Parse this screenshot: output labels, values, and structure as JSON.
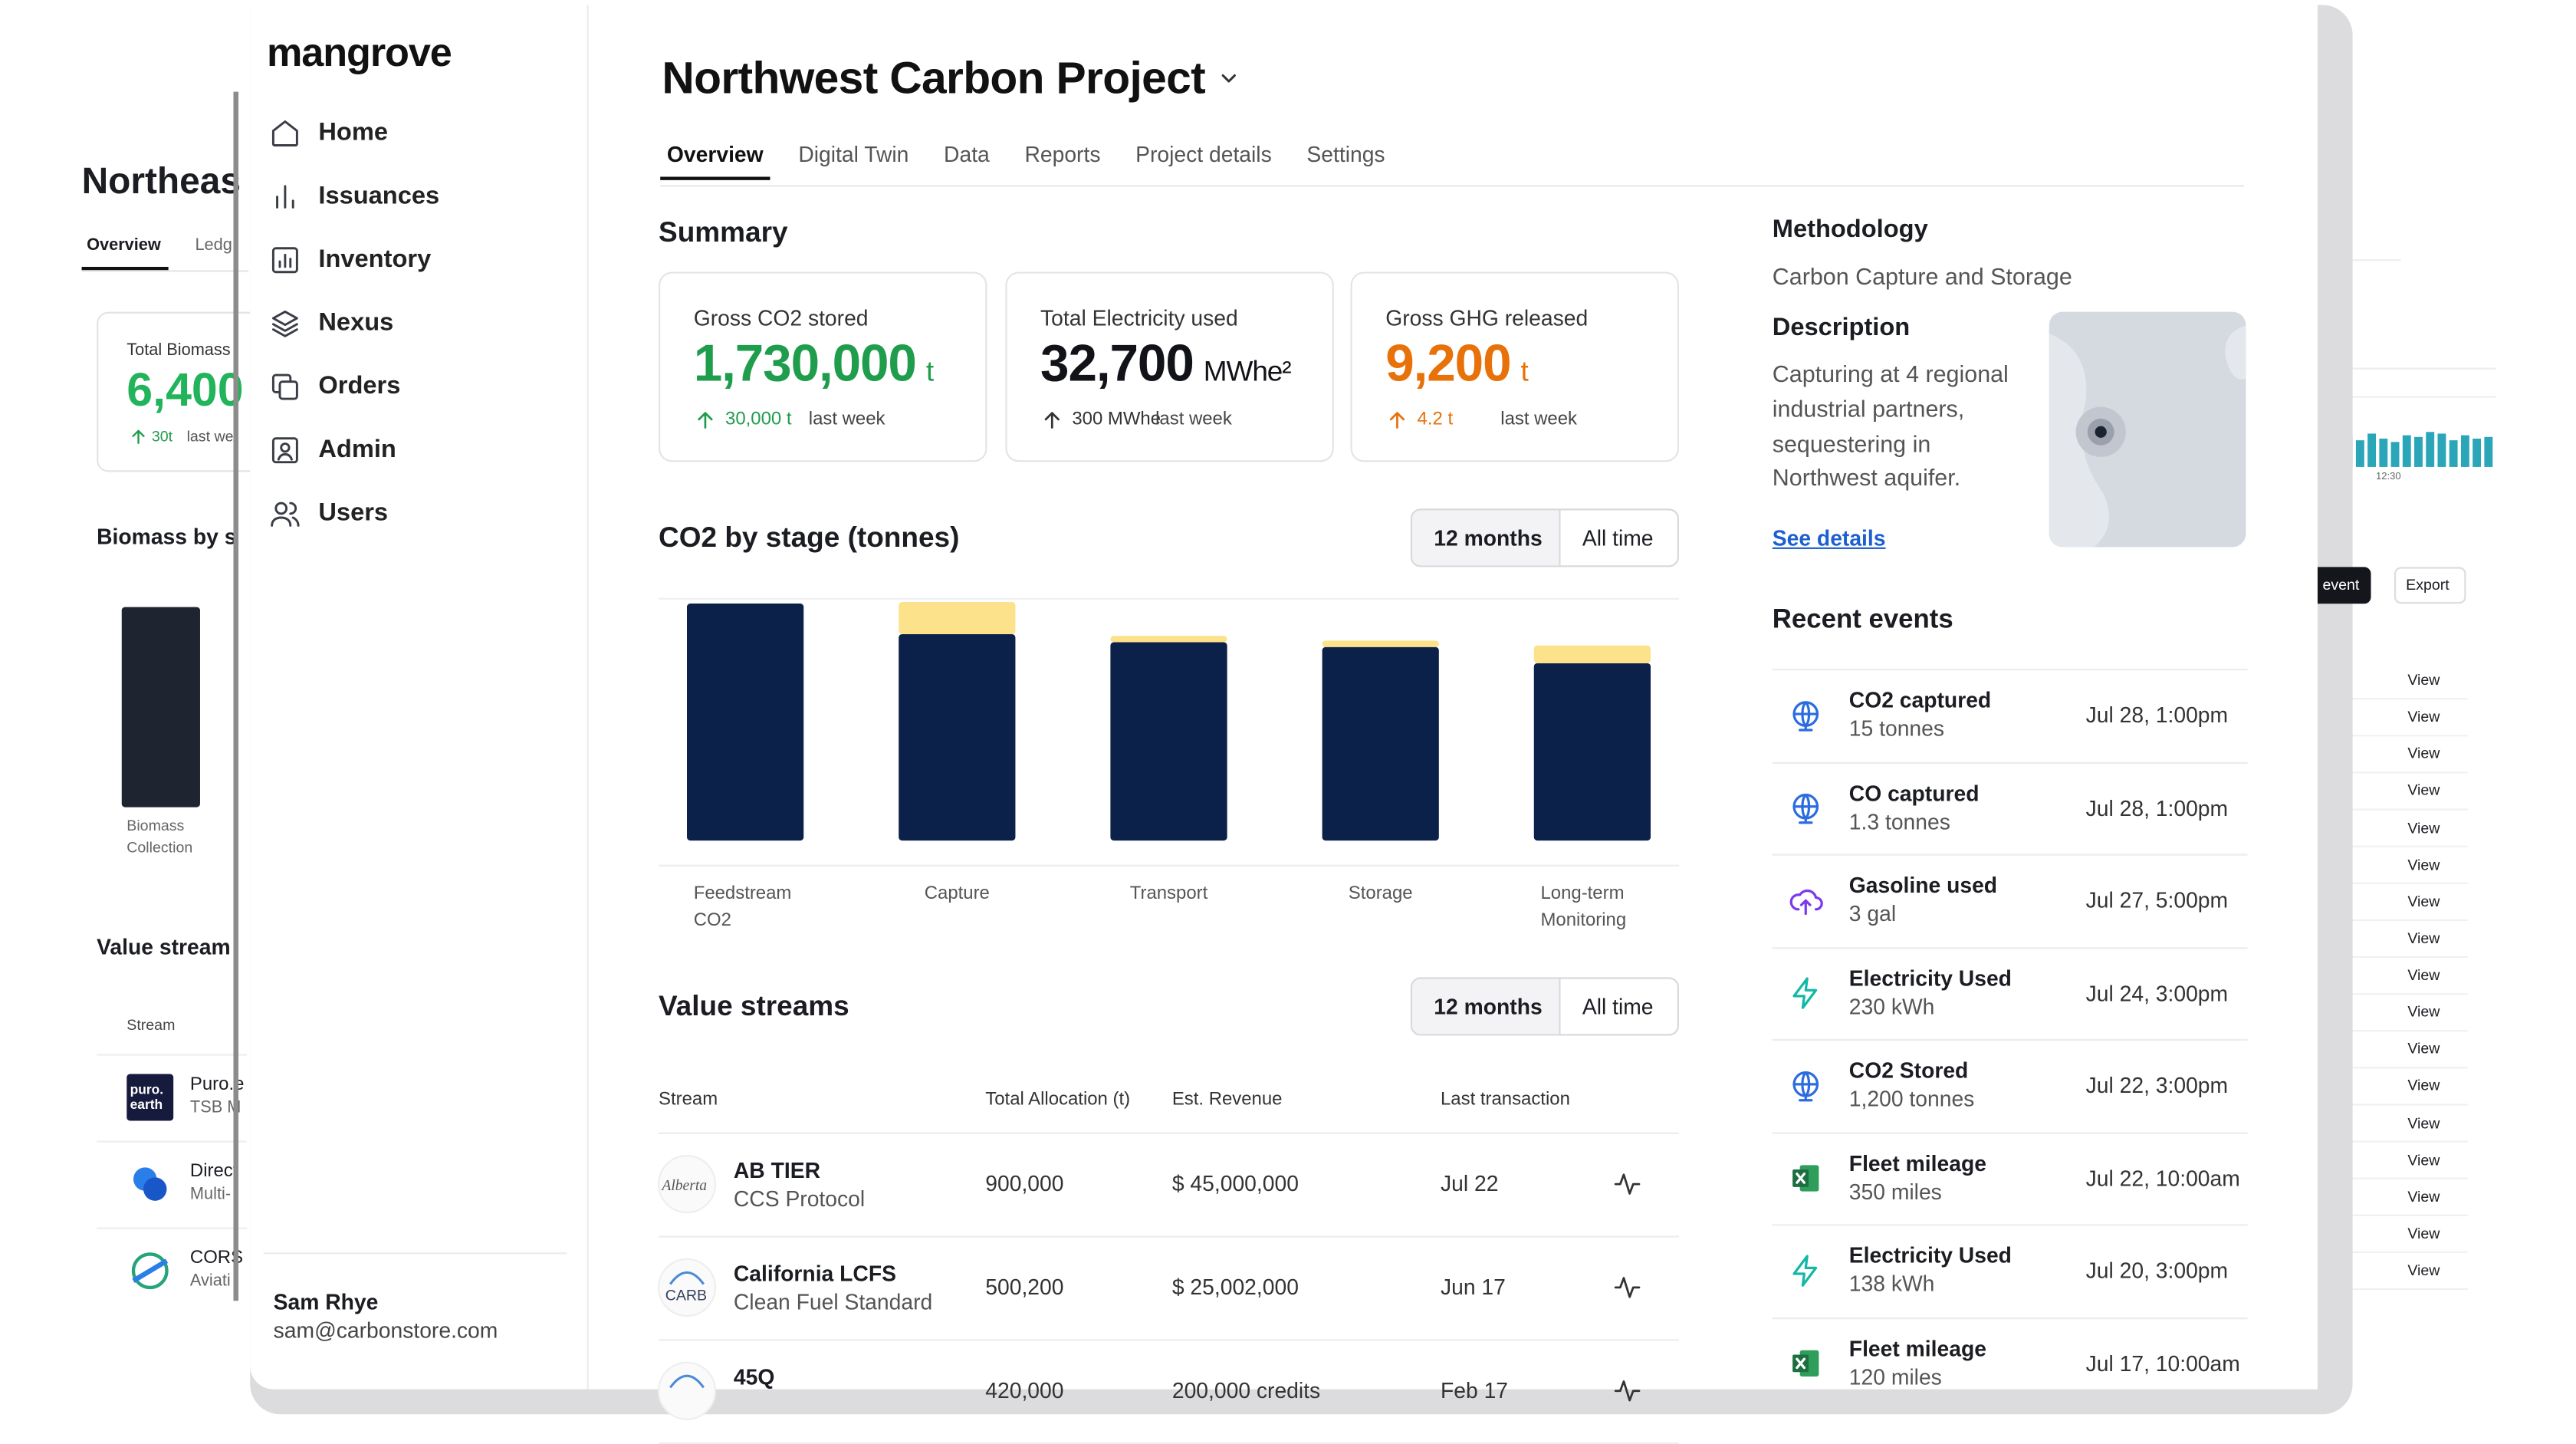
{
  "background_left": {
    "title": "Northeas",
    "tabs": [
      "Overview",
      "Ledg"
    ],
    "card_label": "Total Biomass",
    "card_value": "6,400",
    "card_delta": "30t",
    "card_note": "last we",
    "chart_title": "Biomass by s",
    "chart_label": "Biomass Collection",
    "section_title": "Value stream",
    "column": "Stream",
    "logo_text": [
      "puro.",
      "earth"
    ],
    "rows": [
      {
        "name": "Puro.e",
        "detail": "TSB M"
      },
      {
        "name": "Direct",
        "detail": "Multi-"
      },
      {
        "name": "CORS",
        "detail": "Aviati"
      }
    ]
  },
  "background_right": {
    "buttons": [
      "event",
      "Export"
    ],
    "time_label": "12:30",
    "links": [
      "View",
      "View",
      "View",
      "View",
      "View",
      "View",
      "View",
      "View",
      "View",
      "View",
      "View",
      "View",
      "View",
      "View",
      "View",
      "View",
      "View"
    ]
  },
  "sidebar": {
    "brand": "mangrove",
    "nav": [
      "Home",
      "Issuances",
      "Inventory",
      "Nexus",
      "Orders",
      "Admin",
      "Users"
    ],
    "user": {
      "name": "Sam Rhye",
      "email": "sam@carbonstore.com"
    }
  },
  "header": {
    "title": "Northwest Carbon Project",
    "tabs": [
      "Overview",
      "Digital Twin",
      "Data",
      "Reports",
      "Project details",
      "Settings"
    ]
  },
  "summary": {
    "title": "Summary",
    "cards": [
      {
        "label": "Gross CO2 stored",
        "value": "1,730,000",
        "unit": "t",
        "delta": "30,000 t",
        "note": "last week",
        "color": "#1f9d4c",
        "arrow": "#1f9d4c"
      },
      {
        "label": "Total Electricity used",
        "value": "32,700",
        "unit": "MWhe²",
        "delta": "300 MWhe",
        "note": "last week",
        "color": "#111318",
        "arrow": "#333333"
      },
      {
        "label": "Gross GHG released",
        "value": "9,200",
        "unit": "t",
        "delta": "4.2 t",
        "note": "last week",
        "color": "#e8710a",
        "arrow": "#e8710a"
      }
    ]
  },
  "chart_data": {
    "type": "bar",
    "stacked": true,
    "title": "CO2 by stage (tonnes)",
    "filters": [
      "12 months",
      "All time"
    ],
    "categories": [
      "Feedstream CO2",
      "Capture",
      "Transport",
      "Storage",
      "Long-term Monitoring"
    ],
    "series": [
      {
        "color": "#0b2149",
        "values": [
          147,
          128,
          123,
          120,
          110
        ]
      },
      {
        "color": "#fde28c",
        "values": [
          0,
          20,
          4,
          4,
          11
        ]
      }
    ],
    "ylim": [
      0,
      150
    ]
  },
  "table": {
    "title": "Value streams",
    "filters": [
      "12 months",
      "All time"
    ],
    "columns": [
      "Stream",
      "Total Allocation (t)",
      "Est. Revenue",
      "Last transaction"
    ],
    "rows": [
      {
        "logo": "Alberta",
        "name": "AB TIER",
        "detail": "CCS Protocol",
        "allocation": "900,000",
        "revenue": "$ 45,000,000",
        "last": "Jul 22"
      },
      {
        "logo": "CARB",
        "name": "California LCFS",
        "detail": "Clean Fuel Standard",
        "allocation": "500,200",
        "revenue": "$ 25,002,000",
        "last": "Jun 17"
      },
      {
        "name": "45Q",
        "allocation": "420,000",
        "revenue": "200,000 credits",
        "last": "Feb 17"
      }
    ]
  },
  "details": {
    "methodology_label": "Methodology",
    "methodology": "Carbon Capture and Storage",
    "description_label": "Description",
    "description": "Capturing at 4 regional industrial partners, sequestering in Northwest aquifer.",
    "link": "See details"
  },
  "events": {
    "title": "Recent events",
    "items": [
      {
        "icon": "globe",
        "title": "CO2 captured",
        "detail": "15 tonnes",
        "time": "Jul 28, 1:00pm"
      },
      {
        "icon": "globe",
        "title": "CO captured",
        "detail": "1.3 tonnes",
        "time": "Jul 28, 1:00pm"
      },
      {
        "icon": "upload",
        "title": "Gasoline used",
        "detail": "3 gal",
        "time": "Jul 27, 5:00pm"
      },
      {
        "icon": "bolt",
        "title": "Electricity Used",
        "detail": "230 kWh",
        "time": "Jul 24, 3:00pm"
      },
      {
        "icon": "globe",
        "title": "CO2 Stored",
        "detail": "1,200 tonnes",
        "time": "Jul 22, 3:00pm"
      },
      {
        "icon": "excel",
        "title": "Fleet mileage",
        "detail": "350 miles",
        "time": "Jul 22, 10:00am"
      },
      {
        "icon": "bolt",
        "title": "Electricity Used",
        "detail": "138 kWh",
        "time": "Jul 20, 3:00pm"
      },
      {
        "icon": "excel",
        "title": "Fleet mileage",
        "detail": "120 miles",
        "time": "Jul 17, 10:00am"
      }
    ]
  }
}
